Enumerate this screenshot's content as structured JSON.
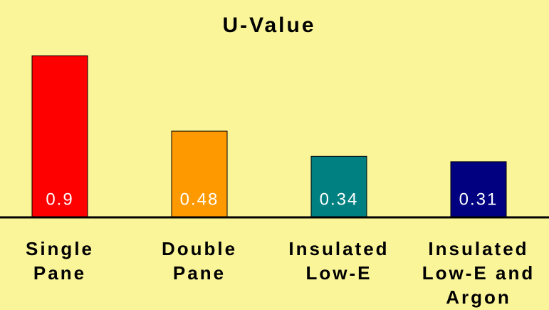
{
  "chart_data": {
    "type": "bar",
    "title": "U-Value",
    "categories": [
      "Single Pane",
      "Double Pane",
      "Insulated Low-E",
      "Insulated Low-E and Argon"
    ],
    "values": [
      0.9,
      0.48,
      0.34,
      0.31
    ],
    "colors": [
      "#ff0000",
      "#ff9900",
      "#008080",
      "#000080"
    ]
  }
}
